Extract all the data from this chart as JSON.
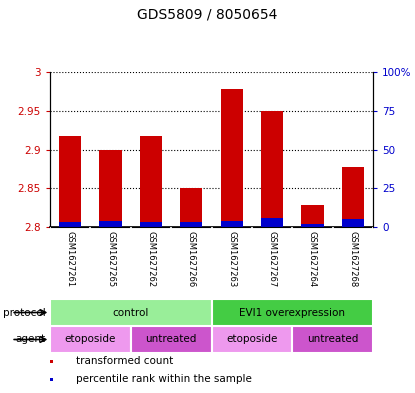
{
  "title": "GDS5809 / 8050654",
  "samples": [
    "GSM1627261",
    "GSM1627265",
    "GSM1627262",
    "GSM1627266",
    "GSM1627263",
    "GSM1627267",
    "GSM1627264",
    "GSM1627268"
  ],
  "red_values": [
    2.917,
    2.9,
    2.917,
    2.85,
    2.978,
    2.95,
    2.828,
    2.878
  ],
  "blue_values_pct": [
    3,
    4,
    3,
    3,
    4,
    6,
    2,
    5
  ],
  "ylim_left": [
    2.8,
    3.0
  ],
  "ylim_right": [
    0,
    100
  ],
  "yticks_left": [
    2.8,
    2.85,
    2.9,
    2.95,
    3.0
  ],
  "yticks_right": [
    0,
    25,
    50,
    75,
    100
  ],
  "ytick_labels_left": [
    "2.8",
    "2.85",
    "2.9",
    "2.95",
    "3"
  ],
  "ytick_labels_right": [
    "0",
    "25",
    "50",
    "75",
    "100%"
  ],
  "left_ycolor": "#cc0000",
  "right_ycolor": "#0000cc",
  "bar_red_color": "#cc0000",
  "bar_blue_color": "#0000cc",
  "bar_bottom": 2.8,
  "protocol_groups": [
    {
      "label": "control",
      "start": 0,
      "end": 4,
      "color": "#99ee99"
    },
    {
      "label": "EVI1 overexpression",
      "start": 4,
      "end": 8,
      "color": "#44cc44"
    }
  ],
  "agent_groups": [
    {
      "label": "etoposide",
      "start": 0,
      "end": 2,
      "color": "#ee99ee"
    },
    {
      "label": "untreated",
      "start": 2,
      "end": 4,
      "color": "#cc55cc"
    },
    {
      "label": "etoposide",
      "start": 4,
      "end": 6,
      "color": "#ee99ee"
    },
    {
      "label": "untreated",
      "start": 6,
      "end": 8,
      "color": "#cc55cc"
    }
  ],
  "legend_items": [
    {
      "label": "transformed count",
      "color": "#cc0000"
    },
    {
      "label": "percentile rank within the sample",
      "color": "#0000cc"
    }
  ],
  "background_color": "#ffffff",
  "plot_bg_color": "#ffffff",
  "label_area_bg": "#cccccc",
  "n_samples": 8
}
